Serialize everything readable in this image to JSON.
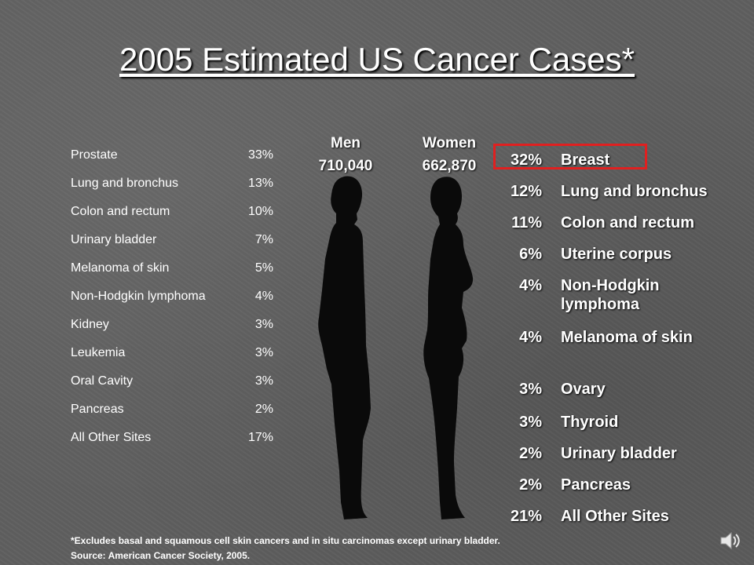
{
  "title": "2005 Estimated US Cancer Cases*",
  "men": {
    "heading": "Men",
    "total": "710,040",
    "rows": [
      {
        "label": "Prostate",
        "pct": "33%"
      },
      {
        "label": "Lung and bronchus",
        "pct": "13%"
      },
      {
        "label": "Colon and rectum",
        "pct": "10%"
      },
      {
        "label": "Urinary bladder",
        "pct": "7%"
      },
      {
        "label": "Melanoma of skin",
        "pct": "5%"
      },
      {
        "label": "Non-Hodgkin lymphoma",
        "pct": "4%"
      },
      {
        "label": "Kidney",
        "pct": "3%"
      },
      {
        "label": "Leukemia",
        "pct": "3%"
      },
      {
        "label": "Oral Cavity",
        "pct": "3%"
      },
      {
        "label": "Pancreas",
        "pct": "2%"
      },
      {
        "label": "All Other Sites",
        "pct": "17%"
      }
    ]
  },
  "women": {
    "heading": "Women",
    "total": "662,870",
    "rows": [
      {
        "pct": "32%",
        "label": "Breast"
      },
      {
        "pct": "12%",
        "label": "Lung and bronchus"
      },
      {
        "pct": "11%",
        "label": "Colon and rectum"
      },
      {
        "pct": "6%",
        "label": "Uterine corpus"
      },
      {
        "pct": "4%",
        "label": "Non-Hodgkin lymphoma"
      },
      {
        "pct": "4%",
        "label": "Melanoma of skin"
      },
      {
        "pct": "3%",
        "label": "Ovary"
      },
      {
        "pct": "3%",
        "label": "Thyroid"
      },
      {
        "pct": "2%",
        "label": "Urinary bladder"
      },
      {
        "pct": "2%",
        "label": "Pancreas"
      },
      {
        "pct": "21%",
        "label": "All Other Sites"
      }
    ]
  },
  "footnote": {
    "line1": "*Excludes basal and squamous cell skin cancers and in situ carcinomas except urinary bladder.",
    "line2": "Source: American Cancer Society, 2005."
  },
  "colors": {
    "highlight": "#e02020",
    "silhouette": "#0a0a0a"
  },
  "icons": {
    "speaker": "speaker-icon"
  }
}
